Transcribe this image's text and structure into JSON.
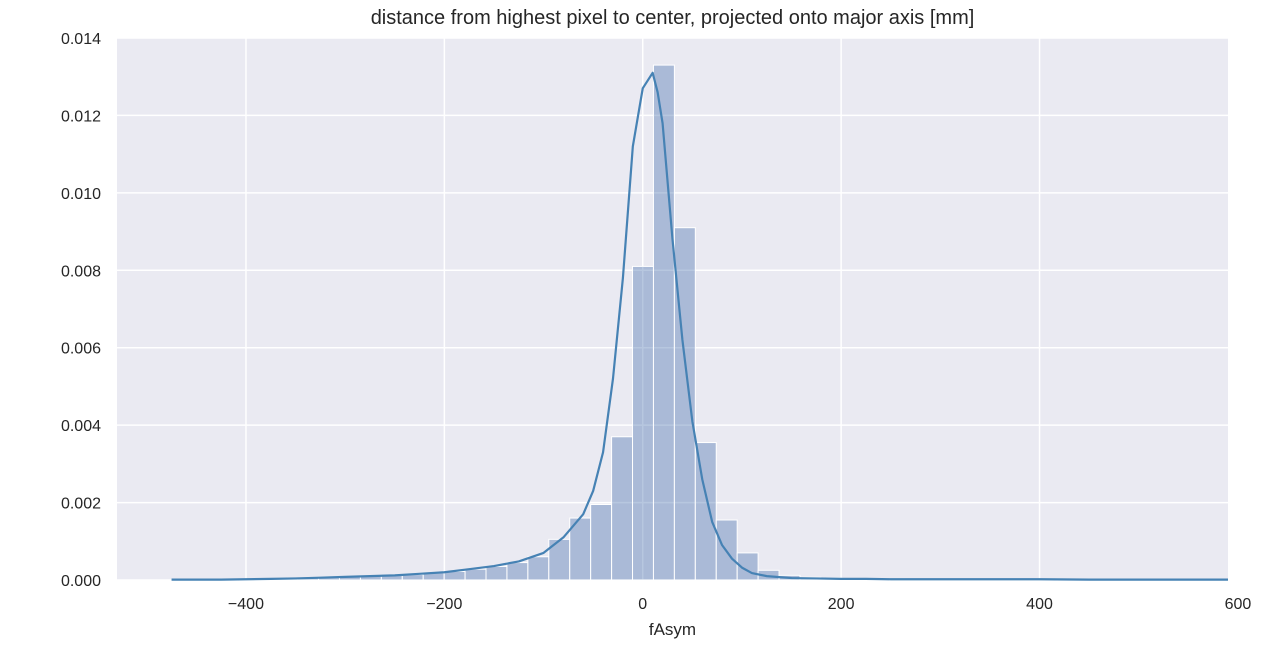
{
  "chart_data": {
    "type": "bar",
    "title": "distance from highest pixel to center, projected onto major axis [mm]",
    "xlabel": "fAsym",
    "ylabel": "",
    "xlim": [
      -530,
      590
    ],
    "ylim": [
      0,
      0.014
    ],
    "x_ticks": [
      -400,
      -200,
      0,
      200,
      400,
      600
    ],
    "x_tick_labels": [
      "−400",
      "−200",
      "0",
      "200",
      "400",
      "600"
    ],
    "y_ticks": [
      0.0,
      0.002,
      0.004,
      0.006,
      0.008,
      0.01,
      0.012,
      0.014
    ],
    "y_tick_labels": [
      "0.000",
      "0.002",
      "0.004",
      "0.006",
      "0.008",
      "0.010",
      "0.012",
      "0.014"
    ],
    "grid": true,
    "background_color": "#EAEAF2",
    "grid_color": "#FFFFFF",
    "bar_color": "#4C72B0",
    "kde_color": "#4682B4",
    "series": [
      {
        "type": "histogram",
        "bin_width": 21.1,
        "bin_lefts": [
          -474.5,
          -453.4,
          -432.3,
          -411.2,
          -390.1,
          -369.0,
          -347.9,
          -326.8,
          -305.7,
          -284.6,
          -263.5,
          -242.4,
          -221.3,
          -200.2,
          -179.1,
          -158.0,
          -136.9,
          -115.8,
          -94.7,
          -73.6,
          -52.5,
          -31.4,
          -10.3,
          10.8,
          31.9,
          53.0,
          74.1,
          95.2,
          116.3,
          137.4,
          158.5,
          179.6,
          200.7,
          221.8,
          242.9,
          264.0,
          285.1,
          306.2,
          327.3,
          348.4,
          369.5,
          390.6,
          411.7,
          432.8,
          453.9,
          475.0,
          496.1,
          517.2,
          538.3,
          559.4
        ],
        "values": [
          1e-05,
          1e-05,
          1e-05,
          2e-05,
          3e-05,
          4e-05,
          5e-05,
          6e-05,
          8e-05,
          0.0001,
          0.00012,
          0.00014,
          0.00018,
          0.00022,
          0.00028,
          0.00035,
          0.00045,
          0.0006,
          0.00105,
          0.0016,
          0.00195,
          0.0037,
          0.0081,
          0.0133,
          0.0091,
          0.00355,
          0.00155,
          0.0007,
          0.00025,
          0.00012,
          7e-05,
          5e-05,
          4e-05,
          3e-05,
          3e-05,
          2e-05,
          2e-05,
          2e-05,
          2e-05,
          2e-05,
          2e-05,
          1e-05,
          1e-05,
          1e-05,
          1e-05,
          1e-05,
          1e-05,
          1e-05,
          1e-05,
          1e-05
        ]
      },
      {
        "type": "kde_line",
        "x": [
          -475,
          -450,
          -425,
          -400,
          -375,
          -350,
          -325,
          -300,
          -275,
          -250,
          -225,
          -200,
          -175,
          -150,
          -125,
          -100,
          -90,
          -80,
          -70,
          -60,
          -50,
          -40,
          -30,
          -20,
          -10,
          0,
          5,
          10,
          15,
          20,
          30,
          40,
          50,
          60,
          70,
          80,
          90,
          100,
          110,
          125,
          150,
          175,
          200,
          225,
          250,
          300,
          350,
          400,
          450,
          500,
          550,
          590
        ],
        "y": [
          1e-05,
          1e-05,
          1e-05,
          2e-05,
          3e-05,
          4e-05,
          6e-05,
          8e-05,
          0.0001,
          0.00012,
          0.00016,
          0.0002,
          0.00028,
          0.00036,
          0.00048,
          0.0007,
          0.0009,
          0.0011,
          0.0014,
          0.0017,
          0.0023,
          0.0033,
          0.0052,
          0.0078,
          0.0112,
          0.0127,
          0.0129,
          0.0131,
          0.0126,
          0.0118,
          0.0088,
          0.0062,
          0.0041,
          0.0026,
          0.0015,
          0.0009,
          0.00055,
          0.00032,
          0.00018,
          0.0001,
          5e-05,
          4e-05,
          3e-05,
          3e-05,
          2e-05,
          2e-05,
          2e-05,
          2e-05,
          1e-05,
          1e-05,
          1e-05,
          1e-05
        ]
      }
    ]
  }
}
